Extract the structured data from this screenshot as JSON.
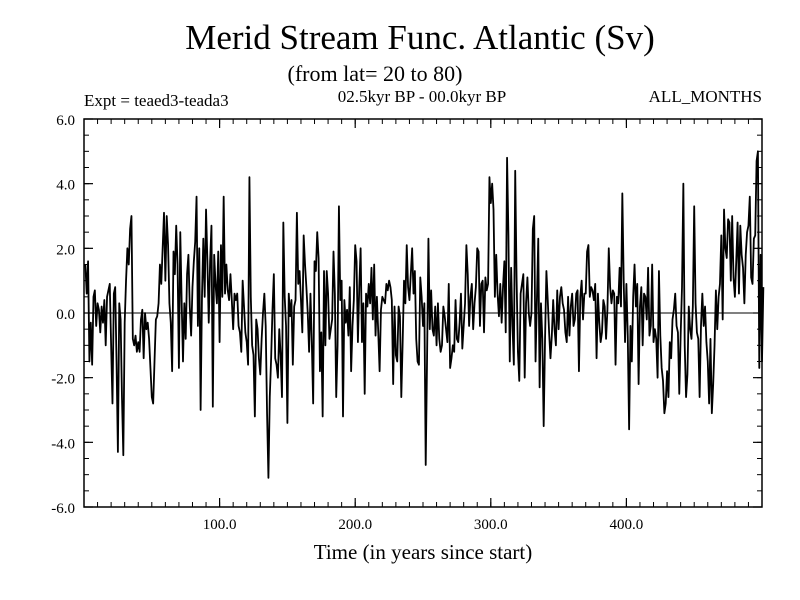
{
  "chart_data": {
    "type": "line",
    "title": "Merid Stream Func. Atlantic (Sv)",
    "subtitle": "(from lat= 20 to 80)",
    "left_label": "Expt = teaed3-teada3",
    "center_label": "02.5kyr BP - 00.0kyr BP",
    "right_label": "ALL_MONTHS",
    "xlabel": "Time (in years since start)",
    "ylabel": "",
    "xlim": [
      0,
      500
    ],
    "ylim": [
      -6.0,
      6.0
    ],
    "x_ticks": [
      100,
      200,
      300,
      400
    ],
    "x_tick_labels": [
      "100.0",
      "200.0",
      "300.0",
      "400.0"
    ],
    "y_ticks": [
      -6,
      -4,
      -2,
      0,
      2,
      4,
      6
    ],
    "y_tick_labels": [
      "-6.0",
      "-4.0",
      "-2.0",
      "0.0",
      "2.0",
      "4.0",
      "6.0"
    ],
    "grid": false,
    "zero_line": true,
    "series": [
      {
        "name": "Merid Stream Func. Atlantic",
        "x_start": 1,
        "x_step": 1,
        "values": [
          1.5,
          0.6,
          1.6,
          -1.5,
          -0.3,
          -1.6,
          0.5,
          0.7,
          -0.4,
          0.3,
          0.1,
          -0.6,
          0.2,
          -0.3,
          0.4,
          -1.0,
          0.5,
          0.7,
          0.9,
          -1.0,
          -2.8,
          0.6,
          0.8,
          -1.5,
          -4.3,
          0.3,
          -0.2,
          -2.6,
          -4.4,
          -0.3,
          1.0,
          2.0,
          1.5,
          2.6,
          3.0,
          -0.8,
          -1.0,
          -0.7,
          -1.2,
          -0.9,
          -1.2,
          -0.2,
          0.1,
          -1.4,
          0.0,
          -0.5,
          -0.3,
          -0.8,
          -1.7,
          -2.6,
          -2.8,
          -1.5,
          -0.2,
          -0.1,
          0.3,
          1.5,
          0.9,
          2.0,
          3.1,
          1.0,
          3.0,
          2.1,
          0.3,
          -0.3,
          -1.8,
          1.9,
          1.2,
          2.7,
          1.5,
          -1.7,
          2.5,
          0.4,
          -1.5,
          0.3,
          -0.8,
          1.2,
          1.8,
          0.2,
          -0.7,
          0.8,
          1.6,
          2.2,
          3.6,
          -0.4,
          2.0,
          -3.0,
          0.5,
          2.3,
          0.5,
          3.2,
          1.6,
          -0.3,
          1.6,
          2.7,
          -2.9,
          1.8,
          0.9,
          0.3,
          1.9,
          -0.9,
          2.1,
          0.5,
          3.6,
          0.6,
          1.5,
          0.7,
          0.4,
          1.2,
          0.4,
          -0.5,
          0.6,
          0.4,
          0.6,
          -0.4,
          -0.6,
          -1.2,
          1.0,
          0.2,
          -0.6,
          -0.9,
          -1.6,
          4.2,
          0.5,
          -1.0,
          -1.3,
          -3.2,
          -0.2,
          -0.5,
          -1.4,
          -1.9,
          -0.8,
          0.0,
          0.6,
          -0.4,
          -3.1,
          -5.1,
          -2.6,
          -1.4,
          0.1,
          1.2,
          -1.4,
          -1.6,
          -2.0,
          -0.5,
          -1.3,
          -2.6,
          2.8,
          0.5,
          -0.4,
          -3.4,
          0.6,
          -0.1,
          0.4,
          -1.6,
          0.2,
          0.4,
          3.1,
          0.9,
          1.3,
          0.4,
          -0.6,
          2.4,
          1.5,
          0.8,
          0.0,
          -1.2,
          0.6,
          -0.9,
          -2.8,
          1.6,
          1.3,
          2.5,
          1.7,
          -1.8,
          -0.6,
          -3.2,
          1.3,
          -1.0,
          1.3,
          0.6,
          -0.8,
          -0.5,
          -0.2,
          1.9,
          0.6,
          -2.6,
          -1.0,
          3.3,
          0.4,
          1.0,
          -3.2,
          0.4,
          -0.3,
          0.1,
          -0.7,
          0.8,
          -1.8,
          -0.4,
          0.4,
          2.1,
          1.6,
          -0.9,
          0.8,
          2.0,
          -0.9,
          0.3,
          -2.5,
          0.6,
          0.2,
          0.9,
          0.3,
          1.4,
          -0.2,
          1.5,
          -0.7,
          0.5,
          -0.6,
          -1.8,
          0.1,
          0.5,
          0.4,
          0.3,
          0.9,
          0.7,
          1.0,
          0.8,
          0.4,
          -2.2,
          0.2,
          -1.3,
          -1.5,
          0.2,
          -0.1,
          -2.6,
          -0.9,
          1.0,
          0.3,
          2.1,
          0.8,
          0.4,
          1.2,
          2.0,
          0.6,
          1.3,
          -0.8,
          -1.5,
          -1.6,
          1.1,
          0.5,
          -0.4,
          0.3,
          -4.7,
          -1.4,
          2.3,
          -0.5,
          0.7,
          -0.5,
          -0.7,
          0.2,
          -1.0,
          0.3,
          -0.8,
          -1.2,
          -1.0,
          0.2,
          -0.1,
          -0.5,
          -0.9,
          0.9,
          -1.7,
          -1.4,
          -1.0,
          -1.2,
          0.4,
          -0.8,
          -0.9,
          -0.3,
          0.6,
          -1.1,
          -0.4,
          0.3,
          2.1,
          1.2,
          -0.4,
          0.5,
          0.9,
          -0.5,
          0.3,
          0.8,
          2.0,
          1.9,
          -0.4,
          0.9,
          1.0,
          -0.6,
          1.1,
          0.7,
          0.9,
          4.2,
          3.4,
          4.0,
          3.2,
          0.5,
          1.8,
          0.6,
          -0.1,
          0.9,
          -0.3,
          0.8,
          1.6,
          -0.6,
          4.8,
          2.4,
          -1.5,
          1.4,
          -0.4,
          -1.6,
          4.4,
          1.1,
          -1.2,
          -2.1,
          0.6,
          0.9,
          1.2,
          -2.0,
          0.3,
          1.1,
          0.0,
          -0.4,
          0.0,
          2.6,
          3.0,
          -1.5,
          0.4,
          2.3,
          -2.3,
          0.3,
          -0.8,
          -3.5,
          -0.8,
          1.3,
          0.4,
          -0.6,
          -1.4,
          -0.7,
          0.4,
          -0.5,
          -1.0,
          0.7,
          -0.5,
          0.5,
          0.8,
          0.3,
          0.1,
          -0.6,
          -0.9,
          0.5,
          -0.7,
          0.2,
          0.6,
          -0.4,
          -0.2,
          0.6,
          0.7,
          -1.8,
          0.5,
          1.0,
          -0.2,
          0.6,
          0.6,
          1.9,
          2.1,
          0.5,
          0.8,
          0.7,
          0.4,
          0.9,
          -1.4,
          0.6,
          -0.3,
          -0.9,
          -0.6,
          0.4,
          0.2,
          -0.8,
          0.1,
          2.0,
          0.8,
          0.3,
          0.7,
          0.6,
          -1.6,
          0.5,
          0.3,
          1.4,
          0.2,
          3.7,
          1.0,
          -0.9,
          0.9,
          -0.7,
          -3.6,
          -0.4,
          -1.5,
          0.5,
          1.5,
          0.2,
          0.9,
          -2.2,
          0.2,
          0.8,
          -1.0,
          0.6,
          0.5,
          -0.2,
          1.4,
          -0.7,
          -0.4,
          1.5,
          -0.9,
          -0.5,
          -0.8,
          -2.0,
          1.3,
          -0.7,
          -1.7,
          -2.1,
          -3.1,
          -2.8,
          -1.8,
          -2.6,
          -0.9,
          -1.4,
          -0.2,
          0.1,
          0.6,
          -0.4,
          -0.6,
          -2.5,
          -0.7,
          0.8,
          4.0,
          -1.0,
          -2.6,
          -1.9,
          0.2,
          -0.5,
          -0.8,
          0.2,
          3.3,
          0.3,
          -0.6,
          -0.8,
          -2.6,
          -0.4,
          0.6,
          -0.4,
          0.2,
          -0.9,
          -1.5,
          -2.8,
          -0.8,
          -3.1,
          -2.2,
          -1.0,
          0.7,
          -0.5,
          0.5,
          0.9,
          2.4,
          -0.2,
          3.2,
          2.0,
          1.7,
          2.9,
          2.8,
          1.0,
          3.0,
          1.1,
          0.5,
          1.6,
          2.8,
          0.6,
          2.7,
          1.8,
          1.4,
          0.3,
          1.8,
          2.5,
          2.7,
          3.6,
          1.1,
          0.9,
          2.3,
          2.4,
          4.7,
          5.0,
          -1.7,
          1.8,
          -1.5,
          0.8
        ]
      }
    ]
  }
}
